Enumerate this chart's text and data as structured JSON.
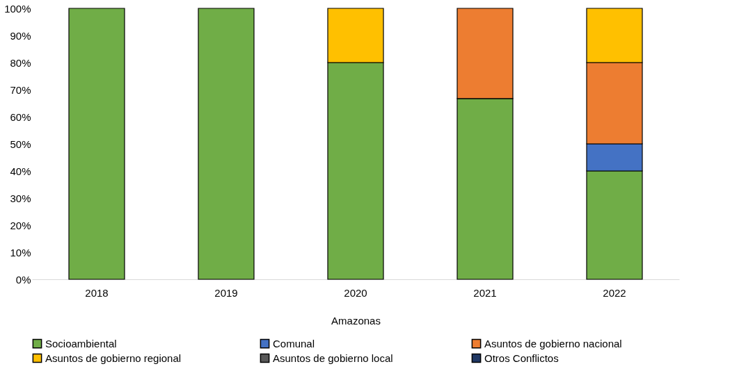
{
  "chart_data": {
    "type": "bar",
    "stacked": true,
    "xlabel": "Amazonas",
    "categories": [
      "2018",
      "2019",
      "2020",
      "2021",
      "2022"
    ],
    "series": [
      {
        "name": "Socioambiental",
        "color": "#70ad47",
        "values": [
          100,
          100,
          80,
          66.7,
          40
        ]
      },
      {
        "name": "Comunal",
        "color": "#4472c4",
        "values": [
          null,
          null,
          null,
          null,
          10
        ]
      },
      {
        "name": "Asuntos de gobierno nacional",
        "color": "#ed7d31",
        "values": [
          null,
          null,
          null,
          33.3,
          30
        ]
      },
      {
        "name": "Asuntos de gobierno regional",
        "color": "#ffc000",
        "values": [
          null,
          null,
          20,
          null,
          20
        ]
      },
      {
        "name": "Asuntos de gobierno local",
        "color": "#595959",
        "values": [
          null,
          null,
          null,
          null,
          null
        ]
      },
      {
        "name": "Otros Conflictos",
        "color": "#203864",
        "values": [
          null,
          null,
          null,
          null,
          null
        ]
      }
    ],
    "ylim": [
      0,
      100
    ],
    "yticks": [
      {
        "value": 0,
        "label": "0%"
      },
      {
        "value": 10,
        "label": "10%"
      },
      {
        "value": 20,
        "label": "20%"
      },
      {
        "value": 30,
        "label": "30%"
      },
      {
        "value": 40,
        "label": "40%"
      },
      {
        "value": 50,
        "label": "50%"
      },
      {
        "value": 60,
        "label": "60%"
      },
      {
        "value": 70,
        "label": "70%"
      },
      {
        "value": 80,
        "label": "80%"
      },
      {
        "value": 90,
        "label": "90%"
      },
      {
        "value": 100,
        "label": "100%"
      }
    ],
    "grid": false,
    "legend": "bottom"
  }
}
